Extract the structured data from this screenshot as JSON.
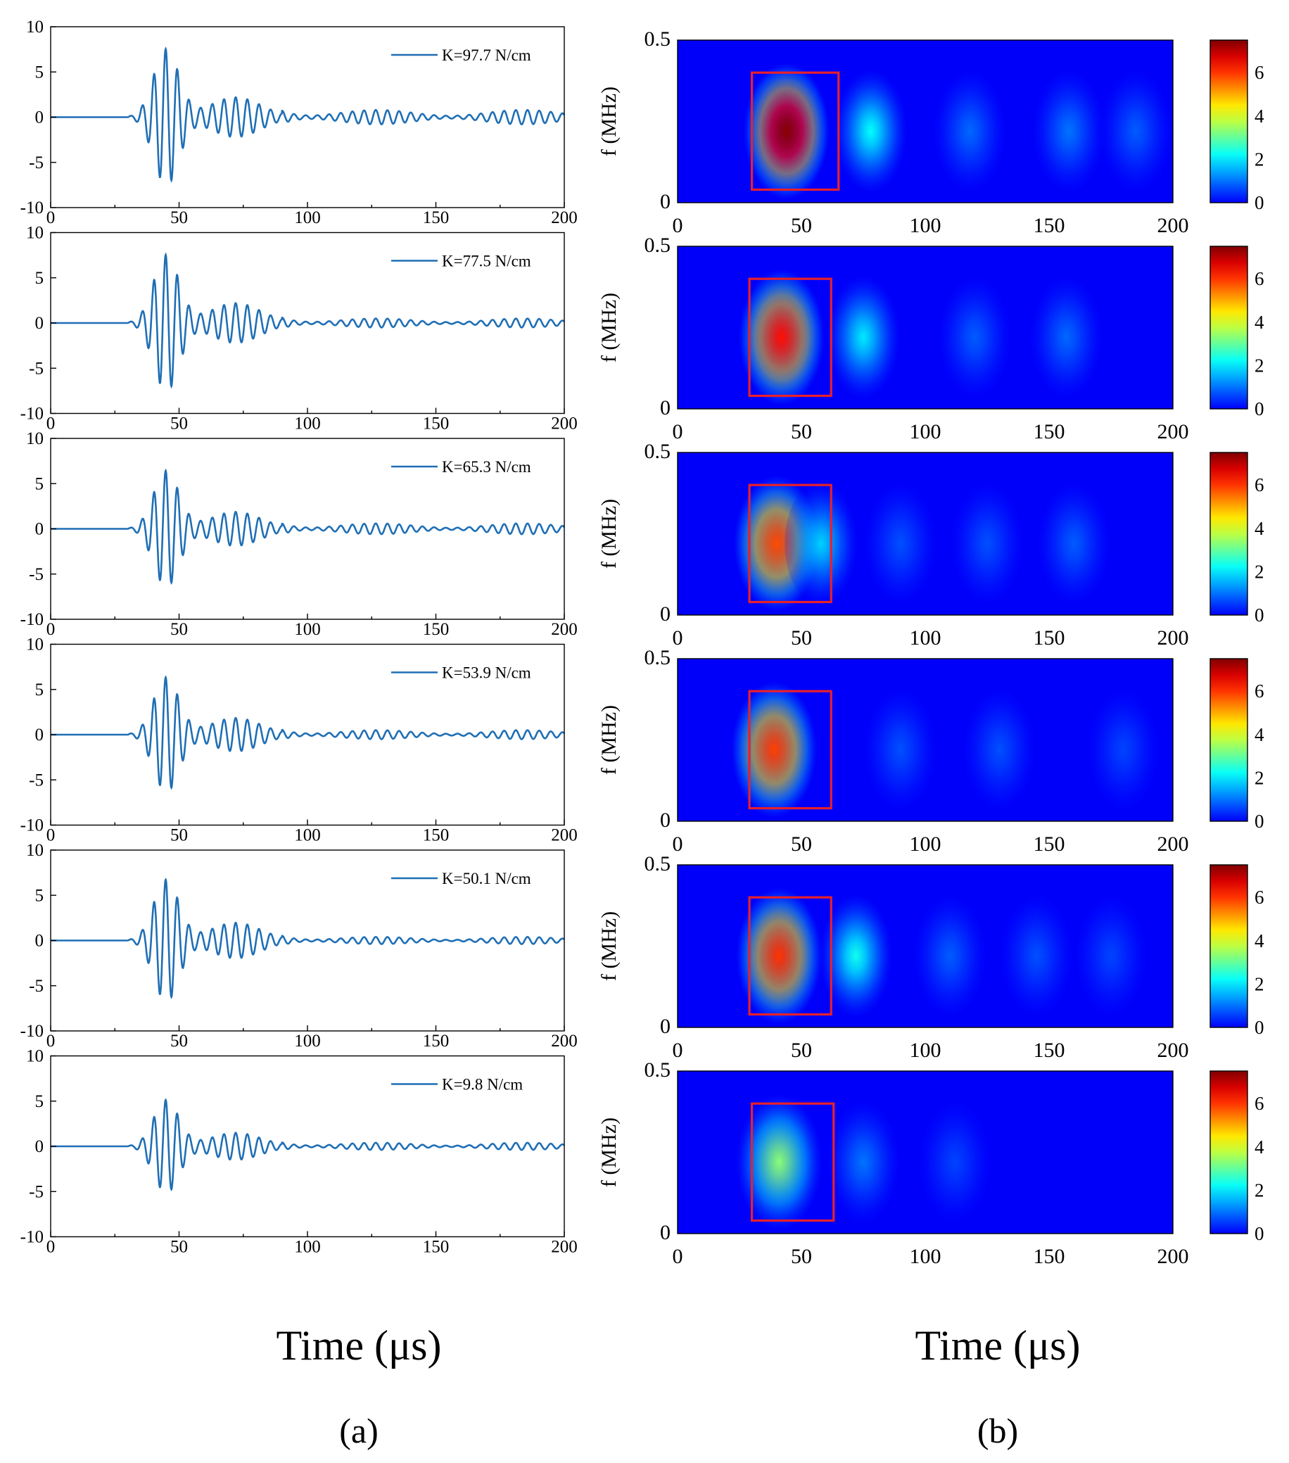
{
  "figure": {
    "xlabel_a": "Time (μs)",
    "xlabel_b": "Time (μs)",
    "panel_a": "(a)",
    "panel_b": "(b)"
  },
  "chart_data": [
    {
      "type": "line",
      "panel": "a",
      "series": [
        {
          "name": "K=97.7 N/cm",
          "peak": 7.5,
          "tail": 0.8
        }
      ],
      "xlim": [
        0,
        200
      ],
      "ylim": [
        -10,
        10
      ],
      "xticks": [
        "0",
        "50",
        "100",
        "150",
        "200"
      ],
      "yticks": [
        "-10",
        "-5",
        "0",
        "5",
        "10"
      ],
      "color": "#1f6fb5"
    },
    {
      "type": "line",
      "panel": "a",
      "series": [
        {
          "name": "K=77.5 N/cm",
          "peak": 7.5,
          "tail": 0.5
        }
      ],
      "xlim": [
        0,
        200
      ],
      "ylim": [
        -10,
        10
      ],
      "xticks": [
        "0",
        "50",
        "100",
        "150",
        "200"
      ],
      "yticks": [
        "-10",
        "-5",
        "0",
        "5",
        "10"
      ],
      "color": "#1f6fb5"
    },
    {
      "type": "line",
      "panel": "a",
      "series": [
        {
          "name": "K=65.3 N/cm",
          "peak": 6.4,
          "tail": 0.6
        }
      ],
      "xlim": [
        0,
        200
      ],
      "ylim": [
        -10,
        10
      ],
      "xticks": [
        "0",
        "50",
        "100",
        "150",
        "200"
      ],
      "yticks": [
        "-10",
        "-5",
        "0",
        "5",
        "10"
      ],
      "color": "#1f6fb5"
    },
    {
      "type": "line",
      "panel": "a",
      "series": [
        {
          "name": "K=53.9 N/cm",
          "peak": 6.3,
          "tail": 0.5
        }
      ],
      "xlim": [
        0,
        200
      ],
      "ylim": [
        -10,
        10
      ],
      "xticks": [
        "0",
        "50",
        "100",
        "150",
        "200"
      ],
      "yticks": [
        "-10",
        "-5",
        "0",
        "5",
        "10"
      ],
      "color": "#1f6fb5"
    },
    {
      "type": "line",
      "panel": "a",
      "series": [
        {
          "name": "K=50.1 N/cm",
          "peak": 6.7,
          "tail": 0.4
        }
      ],
      "xlim": [
        0,
        200
      ],
      "ylim": [
        -10,
        10
      ],
      "xticks": [
        "0",
        "50",
        "100",
        "150",
        "200"
      ],
      "yticks": [
        "-10",
        "-5",
        "0",
        "5",
        "10"
      ],
      "color": "#1f6fb5"
    },
    {
      "type": "line",
      "panel": "a",
      "series": [
        {
          "name": "K=9.8 N/cm",
          "peak": 5.1,
          "tail": 0.4
        }
      ],
      "xlim": [
        0,
        200
      ],
      "ylim": [
        -10,
        10
      ],
      "xticks": [
        "0",
        "50",
        "100",
        "150",
        "200"
      ],
      "yticks": [
        "-10",
        "-5",
        "0",
        "5",
        "10"
      ],
      "color": "#1f6fb5"
    },
    {
      "type": "heatmap",
      "panel": "b",
      "ylabel": "f (MHz)",
      "xlim": [
        0,
        200
      ],
      "ylim": [
        0,
        0.5
      ],
      "xticks": [
        "0",
        "50",
        "100",
        "150",
        "200"
      ],
      "yticks": [
        "0",
        "0.5"
      ],
      "colorbar": {
        "range": [
          0,
          7.5
        ],
        "ticks": [
          "0",
          "2",
          "4",
          "6"
        ]
      },
      "blobs": [
        {
          "t": 44,
          "f": 0.22,
          "amp": 7.4
        },
        {
          "t": 78,
          "f": 0.22,
          "amp": 2.2
        },
        {
          "t": 118,
          "f": 0.22,
          "amp": 0.9
        },
        {
          "t": 158,
          "f": 0.22,
          "amp": 1.0
        },
        {
          "t": 185,
          "f": 0.22,
          "amp": 0.8
        }
      ],
      "highlight_box": {
        "t0": 30,
        "t1": 65,
        "f0": 0.04,
        "f1": 0.4
      }
    },
    {
      "type": "heatmap",
      "panel": "b",
      "ylabel": "f (MHz)",
      "xlim": [
        0,
        200
      ],
      "ylim": [
        0,
        0.5
      ],
      "xticks": [
        "0",
        "50",
        "100",
        "150",
        "200"
      ],
      "yticks": [
        "0",
        "0.5"
      ],
      "colorbar": {
        "range": [
          0,
          7.5
        ],
        "ticks": [
          "0",
          "2",
          "4",
          "6"
        ]
      },
      "blobs": [
        {
          "t": 42,
          "f": 0.22,
          "amp": 6.3
        },
        {
          "t": 75,
          "f": 0.22,
          "amp": 2.0
        },
        {
          "t": 120,
          "f": 0.22,
          "amp": 0.8
        },
        {
          "t": 157,
          "f": 0.22,
          "amp": 0.9
        }
      ],
      "highlight_box": {
        "t0": 29,
        "t1": 62,
        "f0": 0.04,
        "f1": 0.4
      }
    },
    {
      "type": "heatmap",
      "panel": "b",
      "ylabel": "f (MHz)",
      "xlim": [
        0,
        200
      ],
      "ylim": [
        0,
        0.5
      ],
      "xticks": [
        "0",
        "50",
        "100",
        "150",
        "200"
      ],
      "yticks": [
        "0",
        "0.5"
      ],
      "colorbar": {
        "range": [
          0,
          7.5
        ],
        "ticks": [
          "0",
          "2",
          "4",
          "6"
        ]
      },
      "blobs": [
        {
          "t": 40,
          "f": 0.22,
          "amp": 5.8
        },
        {
          "t": 58,
          "f": 0.22,
          "amp": 1.8
        },
        {
          "t": 90,
          "f": 0.22,
          "amp": 0.7
        },
        {
          "t": 125,
          "f": 0.22,
          "amp": 0.7
        },
        {
          "t": 160,
          "f": 0.22,
          "amp": 0.8
        }
      ],
      "highlight_box": {
        "t0": 29,
        "t1": 62,
        "f0": 0.04,
        "f1": 0.4
      }
    },
    {
      "type": "heatmap",
      "panel": "b",
      "ylabel": "f (MHz)",
      "xlim": [
        0,
        200
      ],
      "ylim": [
        0,
        0.5
      ],
      "xticks": [
        "0",
        "50",
        "100",
        "150",
        "200"
      ],
      "yticks": [
        "0",
        "0.5"
      ],
      "colorbar": {
        "range": [
          0,
          7.5
        ],
        "ticks": [
          "0",
          "2",
          "4",
          "6"
        ]
      },
      "blobs": [
        {
          "t": 39,
          "f": 0.22,
          "amp": 5.9
        },
        {
          "t": 90,
          "f": 0.22,
          "amp": 0.7
        },
        {
          "t": 130,
          "f": 0.22,
          "amp": 0.7
        },
        {
          "t": 180,
          "f": 0.22,
          "amp": 0.6
        }
      ],
      "highlight_box": {
        "t0": 29,
        "t1": 62,
        "f0": 0.04,
        "f1": 0.4
      }
    },
    {
      "type": "heatmap",
      "panel": "b",
      "ylabel": "f (MHz)",
      "xlim": [
        0,
        200
      ],
      "ylim": [
        0,
        0.5
      ],
      "xticks": [
        "0",
        "50",
        "100",
        "150",
        "200"
      ],
      "yticks": [
        "0",
        "0.5"
      ],
      "colorbar": {
        "range": [
          0,
          7.5
        ],
        "ticks": [
          "0",
          "2",
          "4",
          "6"
        ]
      },
      "blobs": [
        {
          "t": 41,
          "f": 0.22,
          "amp": 6.0
        },
        {
          "t": 72,
          "f": 0.22,
          "amp": 2.3
        },
        {
          "t": 110,
          "f": 0.22,
          "amp": 0.8
        },
        {
          "t": 145,
          "f": 0.22,
          "amp": 0.7
        },
        {
          "t": 175,
          "f": 0.22,
          "amp": 0.6
        }
      ],
      "highlight_box": {
        "t0": 29,
        "t1": 62,
        "f0": 0.04,
        "f1": 0.4
      }
    },
    {
      "type": "heatmap",
      "panel": "b",
      "ylabel": "f (MHz)",
      "xlim": [
        0,
        200
      ],
      "ylim": [
        0,
        0.5
      ],
      "xticks": [
        "0",
        "50",
        "100",
        "150",
        "200"
      ],
      "yticks": [
        "0",
        "0.5"
      ],
      "colorbar": {
        "range": [
          0,
          7.5
        ],
        "ticks": [
          "0",
          "2",
          "4",
          "6"
        ]
      },
      "blobs": [
        {
          "t": 41,
          "f": 0.22,
          "amp": 3.3
        },
        {
          "t": 75,
          "f": 0.22,
          "amp": 1.0
        },
        {
          "t": 112,
          "f": 0.22,
          "amp": 0.6
        }
      ],
      "highlight_box": {
        "t0": 30,
        "t1": 63,
        "f0": 0.04,
        "f1": 0.4
      }
    }
  ]
}
